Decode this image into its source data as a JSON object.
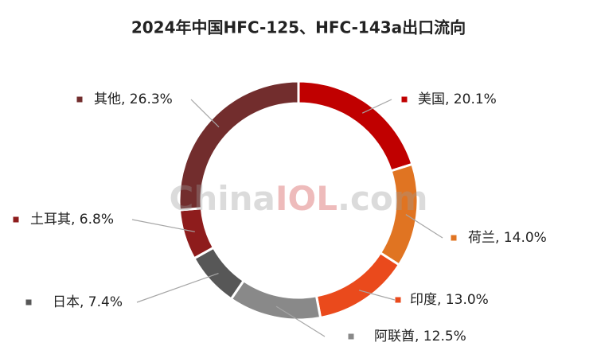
{
  "chart_data": {
    "type": "donut",
    "title": "2024年中国HFC-125、HFC-143a出口流向",
    "watermark": [
      "China",
      "IOL",
      ".com"
    ],
    "values": [
      20.1,
      14.0,
      13.0,
      12.5,
      7.4,
      6.8,
      26.3
    ],
    "value_labels": [
      "美国, 20.1%",
      "荷兰, 14.0%",
      "印度, 13.0%",
      "阿联酋, 12.5%",
      "日本, 7.4%",
      "土耳其, 6.8%",
      "其他, 26.3%"
    ],
    "colors": [
      "#c00000",
      "#e07422",
      "#ea4a1c",
      "#898989",
      "#575757",
      "#8e1c1c",
      "#722d2d"
    ]
  }
}
